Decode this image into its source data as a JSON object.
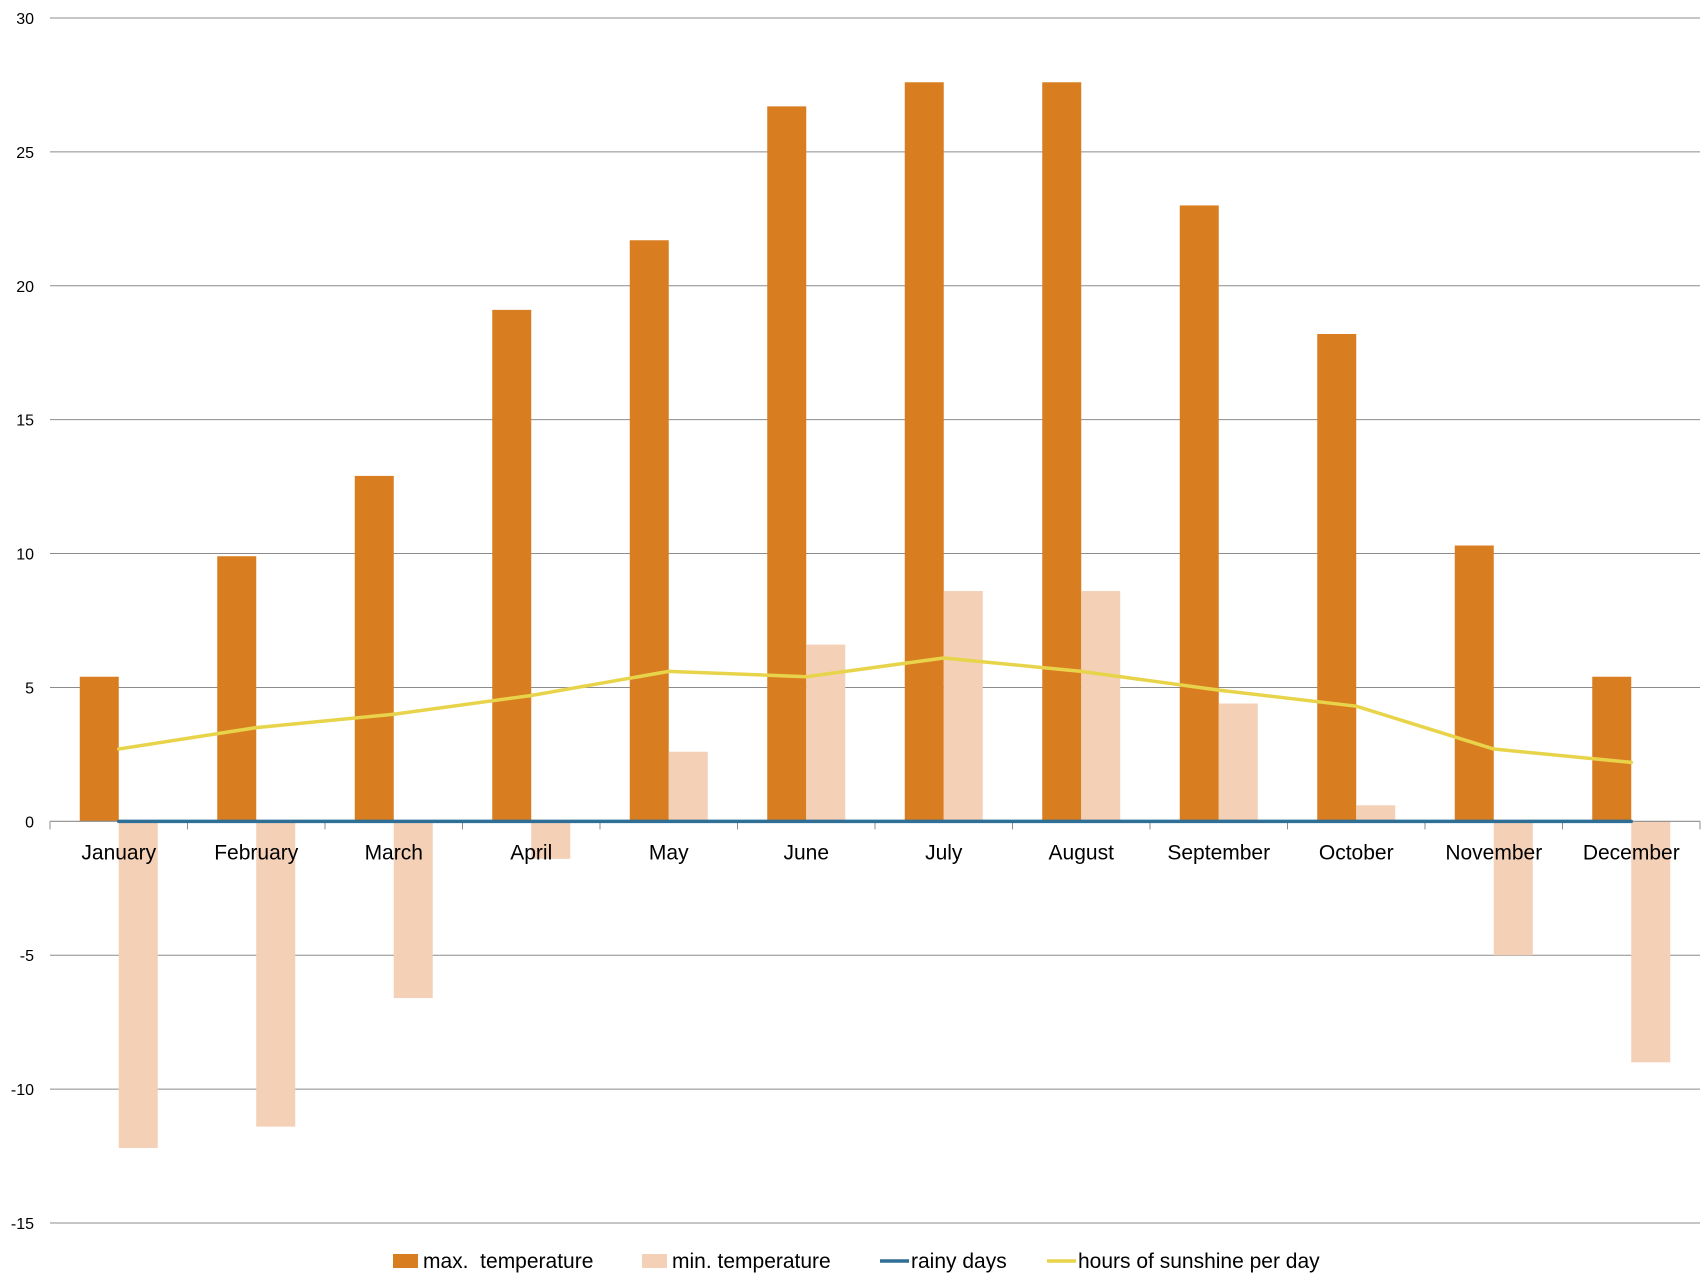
{
  "chart_data": {
    "type": "bar",
    "title": "",
    "xlabel": "",
    "ylabel": "",
    "ylim": [
      -15,
      30
    ],
    "yticks": [
      -15,
      -10,
      -5,
      0,
      5,
      10,
      15,
      20,
      25,
      30
    ],
    "grid": true,
    "legend_position": "bottom",
    "categories": [
      "January",
      "February",
      "March",
      "April",
      "May",
      "June",
      "July",
      "August",
      "September",
      "October",
      "November",
      "December"
    ],
    "series": [
      {
        "name": "max.  temperature",
        "kind": "bar",
        "color": "#d97d21",
        "values": [
          5.4,
          9.9,
          12.9,
          19.1,
          21.7,
          26.7,
          27.6,
          27.6,
          23.0,
          18.2,
          10.3,
          5.4
        ]
      },
      {
        "name": "min. temperature",
        "kind": "bar",
        "color": "#f4d0b6",
        "values": [
          -12.2,
          -11.4,
          -6.6,
          -1.4,
          2.6,
          6.6,
          8.6,
          8.6,
          4.4,
          0.6,
          -5.0,
          -9.0
        ]
      },
      {
        "name": "rainy days",
        "kind": "line",
        "color": "#2f6f96",
        "values": [
          0,
          0,
          0,
          0,
          0,
          0,
          0,
          0,
          0,
          0,
          0,
          0
        ]
      },
      {
        "name": "hours of sunshine per day",
        "kind": "line",
        "color": "#e8d44a",
        "values": [
          2.7,
          3.5,
          4.0,
          4.7,
          5.6,
          5.4,
          6.1,
          5.6,
          4.9,
          4.3,
          2.7,
          2.2
        ]
      }
    ]
  }
}
